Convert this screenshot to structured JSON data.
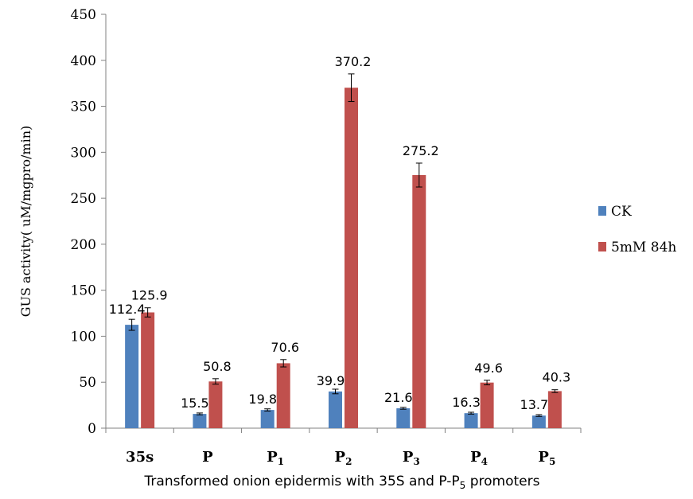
{
  "chart_data": {
    "type": "bar",
    "categories": [
      {
        "base": "35s",
        "sub": ""
      },
      {
        "base": "P",
        "sub": ""
      },
      {
        "base": "P",
        "sub": "1"
      },
      {
        "base": "P",
        "sub": "2"
      },
      {
        "base": "P",
        "sub": "3"
      },
      {
        "base": "P",
        "sub": "4"
      },
      {
        "base": "P",
        "sub": "5"
      }
    ],
    "series": [
      {
        "name": "CK",
        "color": "#4F81BD",
        "values": [
          112.4,
          15.5,
          19.8,
          39.9,
          21.6,
          16.3,
          13.7
        ],
        "labels": [
          "112.4",
          "15.5",
          "19.8",
          "39.9",
          "21.6",
          "16.3",
          "13.7"
        ],
        "errors": [
          6,
          1,
          1.2,
          2.5,
          1,
          1,
          1
        ]
      },
      {
        "name": "5mM 84h",
        "color": "#C0504D",
        "values": [
          125.9,
          50.8,
          70.6,
          370.2,
          275.2,
          49.6,
          40.3
        ],
        "labels": [
          "125.9",
          "50.8",
          "70.6",
          "370.2",
          "275.2",
          "49.6",
          "40.3"
        ],
        "errors": [
          5,
          3,
          4,
          15,
          13,
          2.5,
          1.5
        ]
      }
    ],
    "ylabel": "GUS activity( uM/mgpro/min)",
    "xlabel": {
      "pre": "Transformed onion epidermis with 35S and P-P",
      "sub": "5",
      "post": " promoters"
    },
    "ylim": [
      0,
      450
    ],
    "yticks": [
      "0",
      "50",
      "100",
      "150",
      "200",
      "250",
      "300",
      "350",
      "400",
      "450"
    ],
    "grid": false,
    "legend_position": "right"
  }
}
